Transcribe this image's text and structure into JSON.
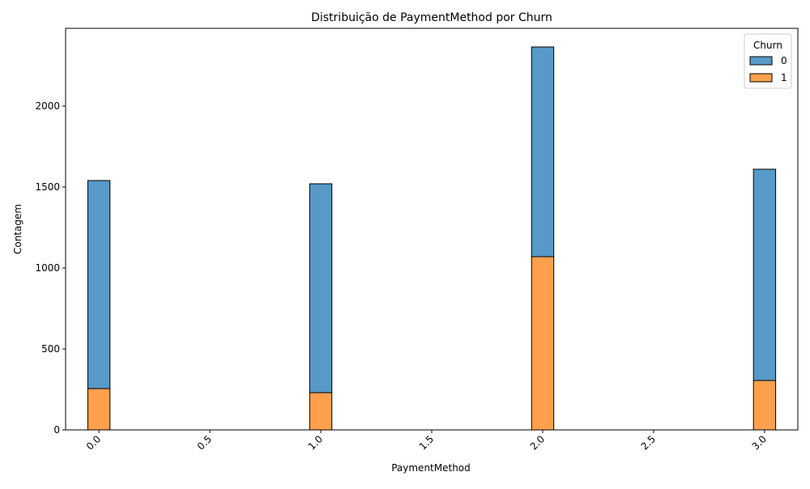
{
  "chart_data": {
    "type": "bar",
    "stacked": true,
    "title": "Distribuição de PaymentMethod por Churn",
    "xlabel": "PaymentMethod",
    "ylabel": "Contagem",
    "xlim": [
      -0.15,
      3.15
    ],
    "ylim": [
      0,
      2480
    ],
    "x_ticks": [
      0.0,
      0.5,
      1.0,
      1.5,
      2.0,
      2.5,
      3.0
    ],
    "x_tick_labels": [
      "0.0",
      "0.5",
      "1.0",
      "1.5",
      "2.0",
      "2.5",
      "3.0"
    ],
    "y_ticks": [
      0,
      500,
      1000,
      1500,
      2000
    ],
    "y_tick_labels": [
      "0",
      "500",
      "1000",
      "1500",
      "2000"
    ],
    "x": [
      0,
      1,
      2,
      3
    ],
    "bin_width": 0.1,
    "legend_title": "Churn",
    "legend_position": "top-right",
    "grid": false,
    "series": [
      {
        "name": "0",
        "color": "#5799c7",
        "values": [
          1285,
          1290,
          1295,
          1305
        ]
      },
      {
        "name": "1",
        "color": "#ffa04d",
        "values": [
          255,
          230,
          1070,
          305
        ]
      }
    ]
  }
}
